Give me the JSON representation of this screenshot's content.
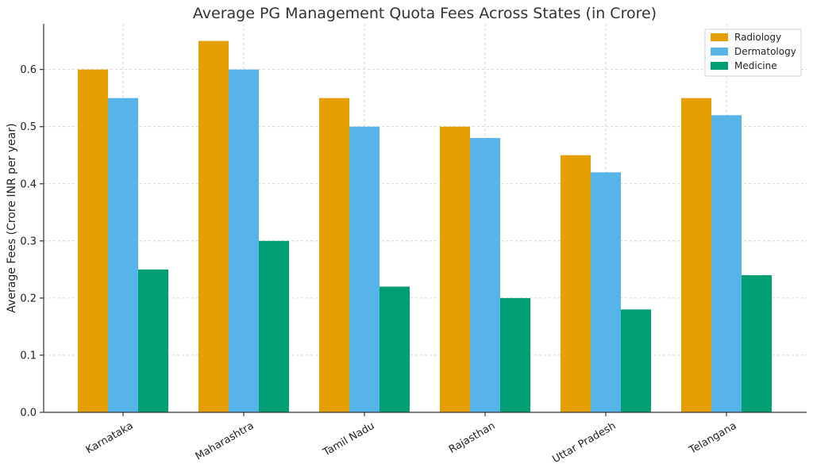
{
  "chart_data": {
    "type": "bar",
    "title": "Average PG Management Quota Fees Across States (in Crore)",
    "xlabel": "",
    "ylabel": "Average Fees (Crore INR per year)",
    "ylim": [
      0,
      0.68
    ],
    "yticks": [
      "0.0",
      "0.1",
      "0.2",
      "0.3",
      "0.4",
      "0.5",
      "0.6"
    ],
    "grid": true,
    "legend_position": "top-right",
    "categories": [
      "Karnataka",
      "Maharashtra",
      "Tamil Nadu",
      "Rajasthan",
      "Uttar Pradesh",
      "Telangana"
    ],
    "series": [
      {
        "name": "Radiology",
        "color": "#E69F00",
        "values": [
          0.6,
          0.65,
          0.55,
          0.5,
          0.45,
          0.55
        ]
      },
      {
        "name": "Dermatology",
        "color": "#56B4E9",
        "values": [
          0.55,
          0.6,
          0.5,
          0.48,
          0.42,
          0.52
        ]
      },
      {
        "name": "Medicine",
        "color": "#009E73",
        "values": [
          0.25,
          0.3,
          0.22,
          0.2,
          0.18,
          0.24
        ]
      }
    ]
  }
}
